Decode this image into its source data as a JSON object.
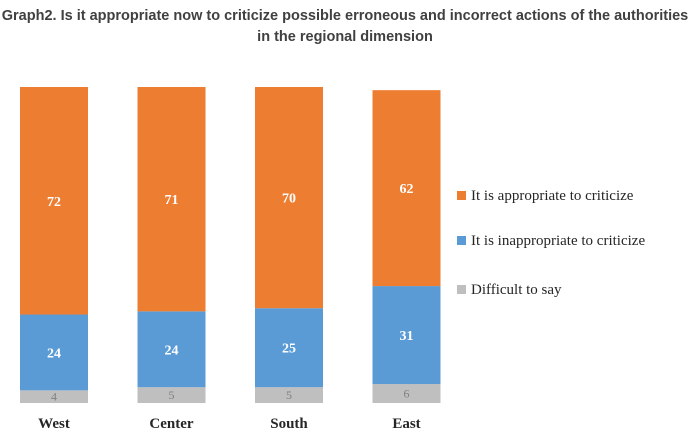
{
  "chart_data": {
    "type": "bar",
    "stacked": true,
    "title": "Graph2. Is it appropriate now to criticize possible erroneous and incorrect actions of the authorities in the regional dimension",
    "categories": [
      "West",
      "Center",
      "South",
      "East"
    ],
    "series": [
      {
        "name": "Difficult to say",
        "values": [
          4,
          5,
          5,
          6
        ],
        "color": "#bfbfbf"
      },
      {
        "name": "It is inappropriate to criticize",
        "values": [
          24,
          24,
          25,
          31
        ],
        "color": "#5b9bd5"
      },
      {
        "name": "It is appropriate to criticize",
        "values": [
          72,
          71,
          70,
          62
        ],
        "color": "#ed7d31"
      }
    ],
    "legend_order": [
      "It is appropriate to criticize",
      "It is inappropriate to criticize",
      "Difficult to say"
    ],
    "legend_position": "right",
    "ylim": [
      0,
      100
    ],
    "grid": false
  }
}
